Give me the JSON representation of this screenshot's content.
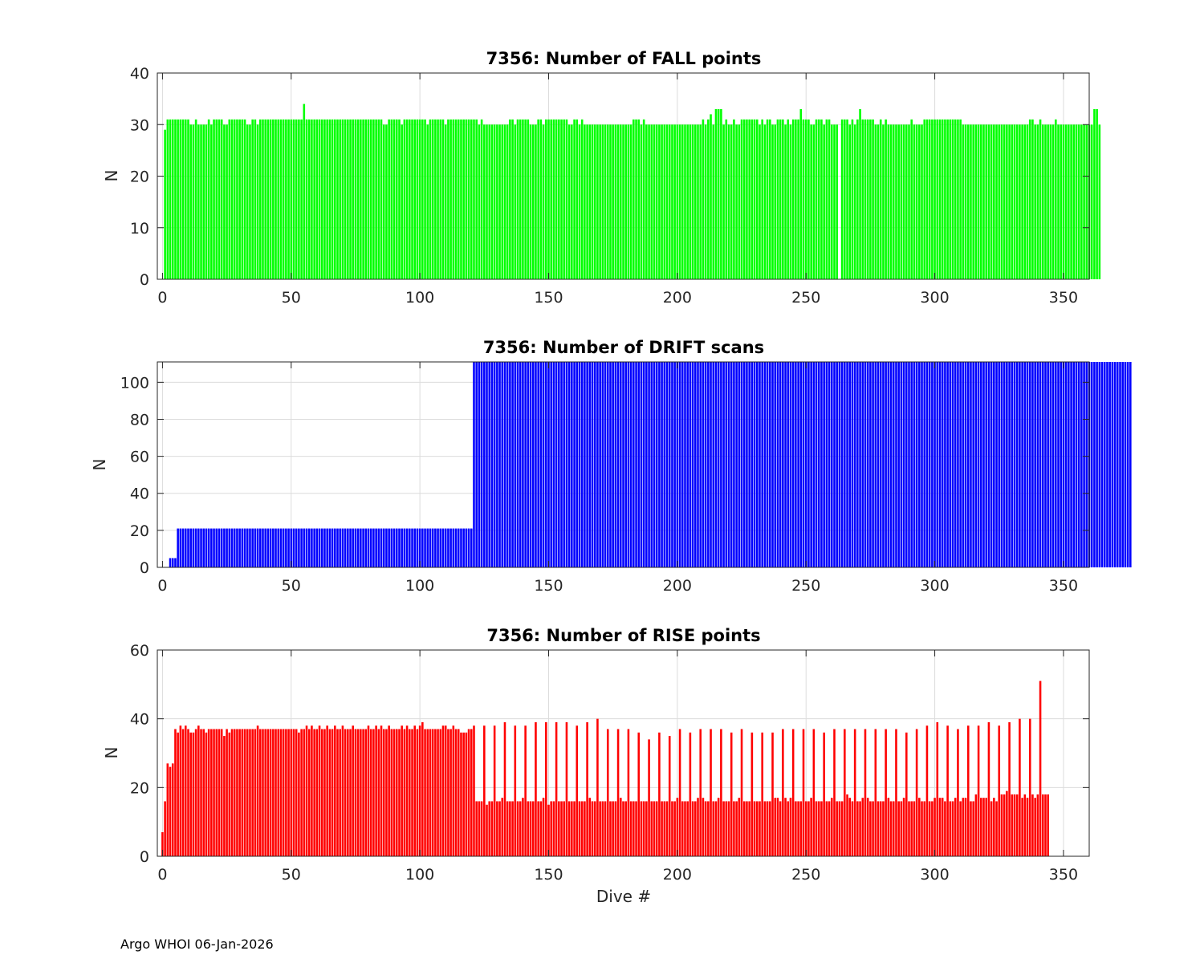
{
  "footer": "Argo WHOI 06-Jan-2026",
  "colors": {
    "fall": "#00ff00",
    "drift": "#0000ff",
    "rise": "#ff0000",
    "grid": "#dcdcdc",
    "axis": "#262626"
  },
  "chart_data": [
    {
      "type": "bar",
      "title": "7356: Number of FALL points",
      "xlabel": "",
      "ylabel": "N",
      "xlim": [
        -2,
        360
      ],
      "ylim": [
        0,
        40
      ],
      "xticks": [
        0,
        50,
        100,
        150,
        200,
        250,
        300,
        350
      ],
      "yticks": [
        0,
        10,
        20,
        30,
        40
      ],
      "grid": true,
      "color": "#00ff00",
      "x_start": 1,
      "values": [
        29,
        31,
        31,
        31,
        31,
        31,
        31,
        31,
        31,
        31,
        30,
        30,
        31,
        30,
        30,
        30,
        30,
        31,
        30,
        31,
        31,
        31,
        31,
        30,
        30,
        31,
        31,
        31,
        31,
        31,
        31,
        31,
        30,
        30,
        31,
        31,
        30,
        31,
        31,
        31,
        31,
        31,
        31,
        31,
        31,
        31,
        31,
        31,
        31,
        31,
        31,
        31,
        31,
        31,
        34,
        31,
        31,
        31,
        31,
        31,
        31,
        31,
        31,
        31,
        31,
        31,
        31,
        31,
        31,
        31,
        31,
        31,
        31,
        31,
        31,
        31,
        31,
        31,
        31,
        31,
        31,
        31,
        31,
        31,
        31,
        30,
        30,
        31,
        31,
        31,
        31,
        31,
        30,
        31,
        31,
        31,
        31,
        31,
        31,
        31,
        31,
        31,
        30,
        31,
        31,
        31,
        31,
        31,
        31,
        30,
        31,
        31,
        31,
        31,
        31,
        31,
        31,
        31,
        31,
        31,
        31,
        31,
        30,
        31,
        30,
        30,
        30,
        30,
        30,
        30,
        30,
        30,
        30,
        30,
        31,
        31,
        30,
        31,
        31,
        31,
        31,
        31,
        30,
        30,
        30,
        31,
        31,
        30,
        31,
        31,
        31,
        31,
        31,
        31,
        31,
        31,
        31,
        30,
        30,
        31,
        31,
        30,
        31,
        30,
        30,
        30,
        30,
        30,
        30,
        30,
        30,
        30,
        30,
        30,
        30,
        30,
        30,
        30,
        30,
        30,
        30,
        30,
        31,
        31,
        31,
        30,
        31,
        30,
        30,
        30,
        30,
        30,
        30,
        30,
        30,
        30,
        30,
        30,
        30,
        30,
        30,
        30,
        30,
        30,
        30,
        30,
        30,
        30,
        30,
        31,
        30,
        31,
        32,
        30,
        33,
        33,
        33,
        30,
        31,
        30,
        30,
        31,
        30,
        30,
        31,
        31,
        31,
        31,
        31,
        31,
        31,
        30,
        31,
        30,
        31,
        31,
        30,
        30,
        31,
        31,
        31,
        30,
        31,
        30,
        31,
        31,
        31,
        33,
        31,
        31,
        31,
        30,
        30,
        31,
        31,
        31,
        30,
        31,
        31,
        30,
        30,
        30,
        0,
        31,
        31,
        31,
        30,
        31,
        30,
        31,
        33,
        31,
        31,
        31,
        31,
        31,
        30,
        30,
        31,
        30,
        31,
        30,
        30,
        30,
        30,
        30,
        30,
        30,
        30,
        30,
        31,
        30,
        30,
        30,
        30,
        31,
        31,
        31,
        31,
        31,
        31,
        31,
        31,
        31,
        31,
        31,
        31,
        31,
        31,
        31,
        30,
        30,
        30,
        30,
        30,
        30,
        30,
        30,
        30,
        30,
        30,
        30,
        30,
        30,
        30,
        30,
        30,
        30,
        30,
        30,
        30,
        30,
        30,
        30,
        30,
        30,
        31,
        31,
        30,
        30,
        31,
        30,
        30,
        30,
        30,
        30,
        31,
        30,
        30,
        30,
        30,
        30,
        30,
        30,
        30,
        30,
        30,
        30,
        30,
        30,
        30,
        33,
        33,
        30
      ]
    },
    {
      "type": "bar",
      "title": "7356: Number of DRIFT scans",
      "xlabel": "",
      "ylabel": "N",
      "xlim": [
        -2,
        360
      ],
      "ylim": [
        0,
        111
      ],
      "xticks": [
        0,
        50,
        100,
        150,
        200,
        250,
        300,
        350
      ],
      "yticks": [
        0,
        20,
        40,
        60,
        80,
        100
      ],
      "grid": true,
      "color": "#0000ff",
      "x_start": 1,
      "values": [
        0,
        0,
        5,
        5,
        5,
        21,
        21,
        21,
        21,
        21,
        21,
        21,
        21,
        21,
        21,
        21,
        21,
        21,
        21,
        21,
        21,
        21,
        21,
        21,
        21,
        21,
        21,
        21,
        21,
        21,
        21,
        21,
        21,
        21,
        21,
        21,
        21,
        21,
        21,
        21,
        21,
        21,
        21,
        21,
        21,
        21,
        21,
        21,
        21,
        21,
        21,
        21,
        21,
        21,
        21,
        21,
        21,
        21,
        21,
        21,
        21,
        21,
        21,
        21,
        21,
        21,
        21,
        21,
        21,
        21,
        21,
        21,
        21,
        21,
        21,
        21,
        21,
        21,
        21,
        21,
        21,
        21,
        21,
        21,
        21,
        21,
        21,
        21,
        21,
        21,
        21,
        21,
        21,
        21,
        21,
        21,
        21,
        21,
        21,
        21,
        21,
        21,
        21,
        21,
        21,
        21,
        21,
        21,
        21,
        21,
        21,
        21,
        21,
        21,
        21,
        21,
        21,
        21,
        21,
        21,
        111,
        111,
        111,
        111,
        111,
        111,
        111,
        111,
        111,
        111,
        111,
        111,
        111,
        111,
        111,
        111,
        111,
        111,
        111,
        111,
        111,
        111,
        111,
        111,
        111,
        111,
        111,
        111,
        111,
        111,
        111,
        111,
        111,
        111,
        111,
        111,
        111,
        111,
        111,
        111,
        111,
        111,
        111,
        111,
        111,
        111,
        111,
        111,
        111,
        111,
        111,
        111,
        111,
        111,
        111,
        111,
        111,
        111,
        111,
        111,
        111,
        111,
        111,
        111,
        111,
        111,
        111,
        111,
        111,
        111,
        111,
        111,
        111,
        111,
        111,
        111,
        111,
        111,
        111,
        111,
        111,
        111,
        111,
        111,
        111,
        111,
        111,
        111,
        111,
        111,
        111,
        111,
        111,
        111,
        111,
        111,
        111,
        111,
        111,
        111,
        111,
        111,
        111,
        111,
        111,
        111,
        111,
        111,
        111,
        111,
        111,
        111,
        111,
        111,
        111,
        111,
        111,
        111,
        111,
        111,
        111,
        111,
        111,
        111,
        111,
        111,
        111,
        111,
        111,
        111,
        111,
        111,
        111,
        111,
        111,
        111,
        111,
        111,
        111,
        111,
        111,
        111,
        111,
        111,
        111,
        111,
        111,
        111,
        111,
        111,
        111,
        111,
        111,
        111,
        111,
        111,
        111,
        111,
        111,
        111,
        111,
        111,
        111,
        111,
        111,
        111,
        111,
        111,
        111,
        111,
        111,
        111,
        111,
        111,
        111,
        111,
        111,
        111,
        111,
        111,
        111,
        111,
        111,
        111,
        111,
        111,
        111,
        111,
        111,
        111,
        111,
        111,
        111,
        111,
        111,
        111,
        111,
        111,
        111,
        111,
        111,
        111,
        111,
        111,
        111,
        111,
        111,
        111,
        111,
        111,
        111,
        111,
        111,
        111,
        111,
        111,
        111,
        111,
        111,
        111,
        111,
        111,
        111,
        111,
        111,
        111,
        111,
        111,
        111,
        111,
        111,
        111,
        111,
        111,
        111,
        111,
        111,
        111,
        111,
        111,
        111,
        111,
        111,
        111,
        111,
        111,
        111,
        111,
        111,
        111,
        111,
        111,
        111,
        111,
        111,
        111
      ]
    },
    {
      "type": "bar",
      "title": "7356: Number of RISE points",
      "xlabel": "Dive #",
      "ylabel": "N",
      "xlim": [
        -2,
        360
      ],
      "ylim": [
        0,
        60
      ],
      "xticks": [
        0,
        50,
        100,
        150,
        200,
        250,
        300,
        350
      ],
      "yticks": [
        0,
        20,
        40,
        60
      ],
      "grid": true,
      "color": "#ff0000",
      "x_start": 0,
      "values": [
        7,
        16,
        27,
        26,
        27,
        37,
        36,
        38,
        37,
        38,
        37,
        36,
        36,
        37,
        38,
        37,
        37,
        36,
        37,
        37,
        37,
        37,
        37,
        37,
        35,
        37,
        36,
        37,
        37,
        37,
        37,
        37,
        37,
        37,
        37,
        37,
        37,
        38,
        37,
        37,
        37,
        37,
        37,
        37,
        37,
        37,
        37,
        37,
        37,
        37,
        37,
        37,
        37,
        36,
        37,
        37,
        38,
        37,
        38,
        37,
        37,
        38,
        37,
        37,
        38,
        37,
        37,
        38,
        37,
        37,
        38,
        37,
        37,
        37,
        38,
        37,
        37,
        37,
        37,
        37,
        38,
        37,
        37,
        38,
        37,
        38,
        37,
        37,
        38,
        37,
        37,
        37,
        37,
        38,
        37,
        38,
        37,
        37,
        38,
        37,
        38,
        39,
        37,
        37,
        37,
        37,
        37,
        37,
        37,
        38,
        38,
        37,
        37,
        38,
        37,
        37,
        36,
        36,
        36,
        37,
        37,
        38,
        16,
        16,
        16,
        38,
        15,
        16,
        16,
        38,
        16,
        16,
        17,
        39,
        16,
        16,
        16,
        38,
        16,
        16,
        17,
        38,
        16,
        16,
        16,
        39,
        16,
        16,
        17,
        39,
        15,
        16,
        16,
        39,
        16,
        16,
        16,
        39,
        16,
        16,
        16,
        38,
        16,
        16,
        16,
        39,
        17,
        16,
        16,
        40,
        16,
        16,
        16,
        37,
        16,
        16,
        16,
        37,
        17,
        16,
        16,
        37,
        16,
        16,
        16,
        36,
        16,
        16,
        16,
        34,
        16,
        16,
        16,
        36,
        16,
        16,
        16,
        35,
        16,
        16,
        17,
        37,
        16,
        16,
        16,
        36,
        16,
        16,
        17,
        37,
        17,
        16,
        16,
        37,
        16,
        16,
        17,
        37,
        16,
        16,
        16,
        36,
        16,
        16,
        17,
        37,
        16,
        16,
        16,
        36,
        16,
        16,
        16,
        36,
        16,
        16,
        16,
        36,
        17,
        17,
        16,
        37,
        17,
        16,
        17,
        37,
        16,
        16,
        16,
        37,
        16,
        16,
        17,
        37,
        16,
        16,
        16,
        36,
        16,
        16,
        17,
        37,
        16,
        16,
        16,
        37,
        18,
        17,
        16,
        37,
        16,
        16,
        17,
        37,
        17,
        16,
        16,
        37,
        16,
        16,
        16,
        37,
        17,
        16,
        16,
        37,
        16,
        16,
        17,
        36,
        16,
        16,
        16,
        37,
        17,
        16,
        16,
        38,
        16,
        16,
        17,
        39,
        17,
        17,
        16,
        38,
        16,
        16,
        17,
        37,
        16,
        17,
        17,
        38,
        16,
        16,
        18,
        38,
        17,
        17,
        17,
        39,
        16,
        17,
        16,
        38,
        18,
        18,
        19,
        39,
        18,
        18,
        18,
        40,
        17,
        18,
        17,
        40,
        18,
        17,
        18,
        51,
        18,
        18,
        18
      ]
    }
  ]
}
